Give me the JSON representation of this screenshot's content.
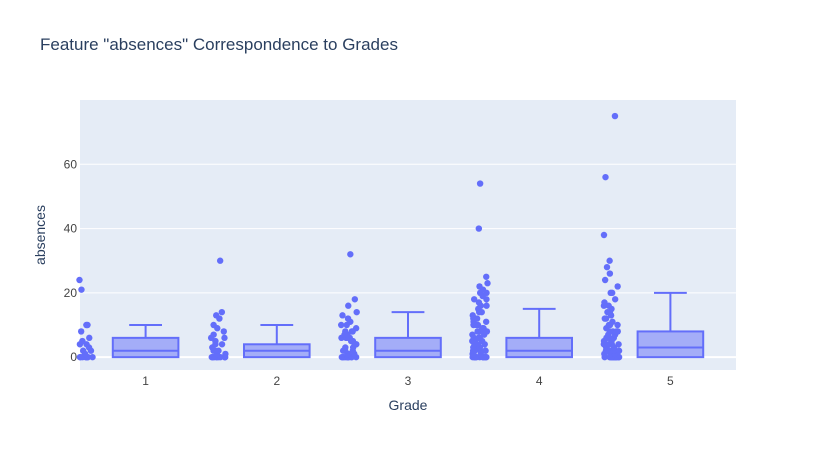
{
  "colors": {
    "plot_bg": "#e5ecf6",
    "grid": "#ffffff",
    "marker": "#636efa",
    "box_fill": "rgba(99,110,250,0.5)",
    "text": "#444444",
    "title": "#2a3f5f"
  },
  "chart_data": {
    "type": "box",
    "title": "Feature \"absences\" Correspondence to Grades",
    "xlabel": "Grade",
    "ylabel": "absences",
    "categories": [
      "1",
      "2",
      "3",
      "4",
      "5"
    ],
    "ylim": [
      -4,
      80
    ],
    "yticks": [
      0,
      20,
      40,
      60
    ],
    "grid": true,
    "boxes": [
      {
        "category": "1",
        "q1": 0,
        "median": 2,
        "q3": 6,
        "lower_whisker": 0,
        "upper_whisker": 10
      },
      {
        "category": "2",
        "q1": 0,
        "median": 2,
        "q3": 4,
        "lower_whisker": 0,
        "upper_whisker": 10
      },
      {
        "category": "3",
        "q1": 0,
        "median": 2,
        "q3": 6,
        "lower_whisker": 0,
        "upper_whisker": 14
      },
      {
        "category": "4",
        "q1": 0,
        "median": 2,
        "q3": 6,
        "lower_whisker": 0,
        "upper_whisker": 15
      },
      {
        "category": "5",
        "q1": 0,
        "median": 3,
        "q3": 8,
        "lower_whisker": 0,
        "upper_whisker": 20
      }
    ],
    "points": [
      {
        "category": "1",
        "values": [
          0,
          0,
          0,
          0,
          0,
          0,
          0,
          0,
          0,
          1,
          2,
          2,
          3,
          4,
          4,
          5,
          6,
          8,
          10,
          10,
          21,
          24
        ]
      },
      {
        "category": "2",
        "values": [
          0,
          0,
          0,
          0,
          0,
          0,
          0,
          0,
          0,
          0,
          0,
          1,
          1,
          2,
          2,
          2,
          3,
          4,
          4,
          5,
          6,
          6,
          7,
          8,
          9,
          10,
          12,
          13,
          14,
          30
        ]
      },
      {
        "category": "3",
        "values": [
          0,
          0,
          0,
          0,
          0,
          0,
          0,
          0,
          0,
          0,
          0,
          0,
          0,
          1,
          1,
          1,
          2,
          2,
          2,
          2,
          3,
          3,
          4,
          4,
          4,
          4,
          5,
          5,
          6,
          6,
          6,
          6,
          7,
          7,
          8,
          8,
          8,
          9,
          10,
          10,
          11,
          12,
          13,
          14,
          16,
          18,
          32
        ]
      },
      {
        "category": "4",
        "values": [
          0,
          0,
          0,
          0,
          0,
          0,
          0,
          0,
          0,
          0,
          0,
          0,
          0,
          0,
          1,
          1,
          1,
          1,
          2,
          2,
          2,
          2,
          2,
          3,
          3,
          3,
          4,
          4,
          4,
          4,
          4,
          5,
          5,
          5,
          6,
          6,
          6,
          6,
          6,
          7,
          7,
          8,
          8,
          8,
          8,
          9,
          9,
          10,
          10,
          10,
          11,
          11,
          12,
          12,
          12,
          13,
          14,
          14,
          15,
          16,
          16,
          16,
          17,
          18,
          18,
          19,
          20,
          20,
          21,
          22,
          23,
          25,
          40,
          54
        ]
      },
      {
        "category": "5",
        "values": [
          0,
          0,
          0,
          0,
          0,
          0,
          0,
          0,
          0,
          0,
          0,
          0,
          0,
          0,
          0,
          0,
          1,
          1,
          1,
          1,
          2,
          2,
          2,
          2,
          2,
          3,
          3,
          3,
          4,
          4,
          4,
          4,
          5,
          5,
          6,
          6,
          6,
          6,
          7,
          7,
          8,
          8,
          8,
          8,
          9,
          10,
          10,
          10,
          11,
          12,
          12,
          13,
          14,
          14,
          15,
          16,
          16,
          17,
          18,
          20,
          20,
          22,
          24,
          26,
          28,
          30,
          38,
          56,
          75
        ]
      }
    ]
  }
}
